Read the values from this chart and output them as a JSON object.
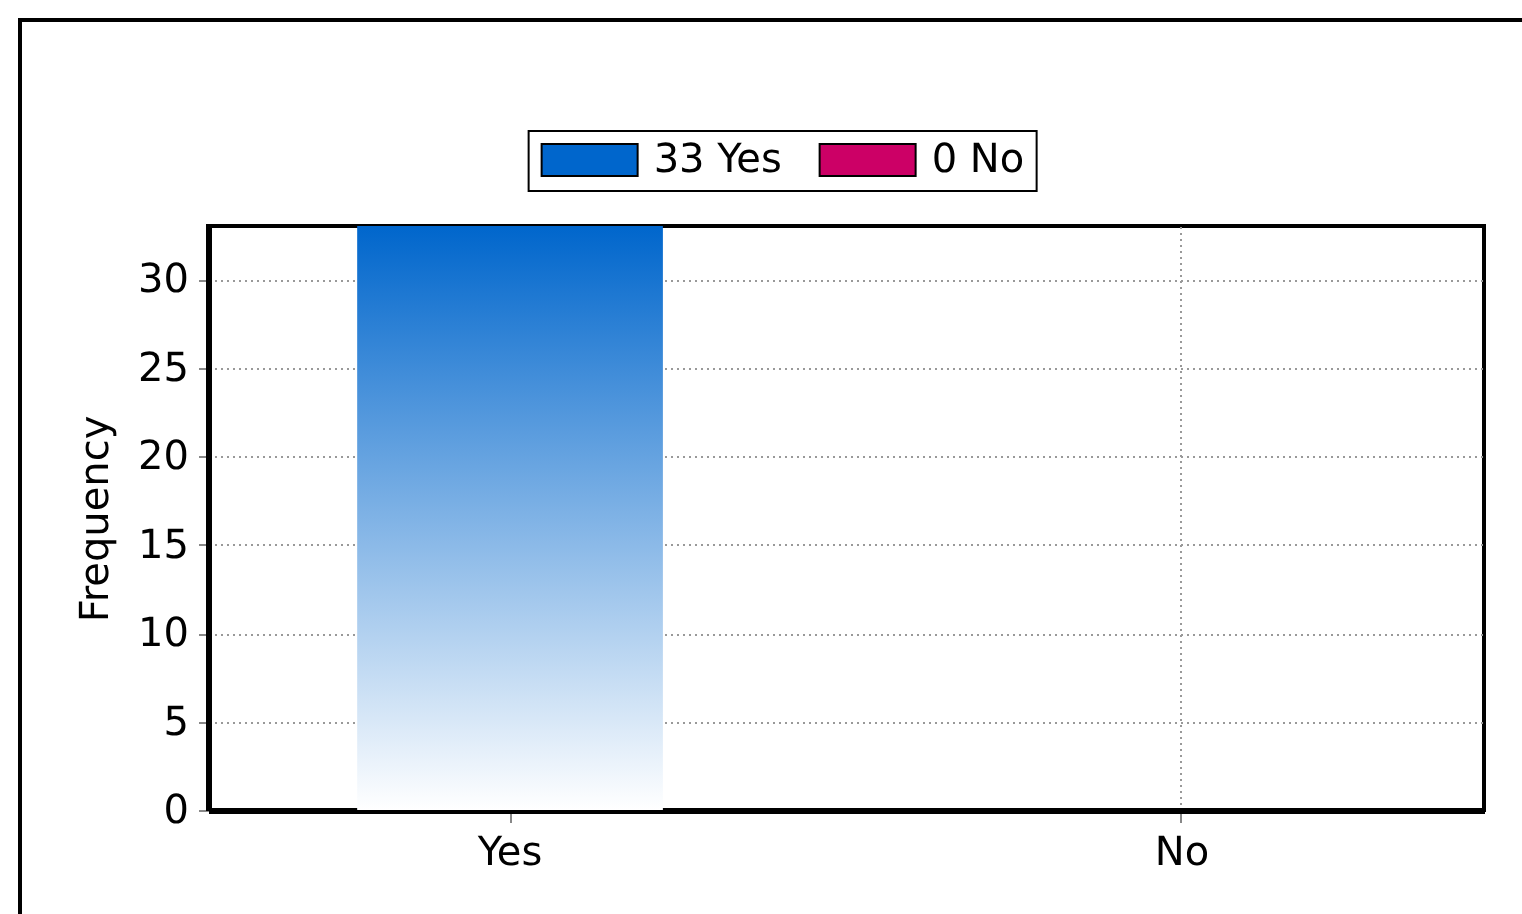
{
  "chart_data": {
    "type": "bar",
    "categories": [
      "Yes",
      "No"
    ],
    "series": [
      {
        "name": "33 Yes",
        "color": "#0066cc",
        "values": [
          33,
          null
        ]
      },
      {
        "name": "0 No",
        "color": "#cc0066",
        "values": [
          null,
          0
        ]
      }
    ],
    "ylabel": "Frequency",
    "ylim": [
      0,
      33
    ],
    "yticks": [
      0,
      5,
      10,
      15,
      20,
      25,
      30
    ],
    "grid": true,
    "legend": "top"
  }
}
